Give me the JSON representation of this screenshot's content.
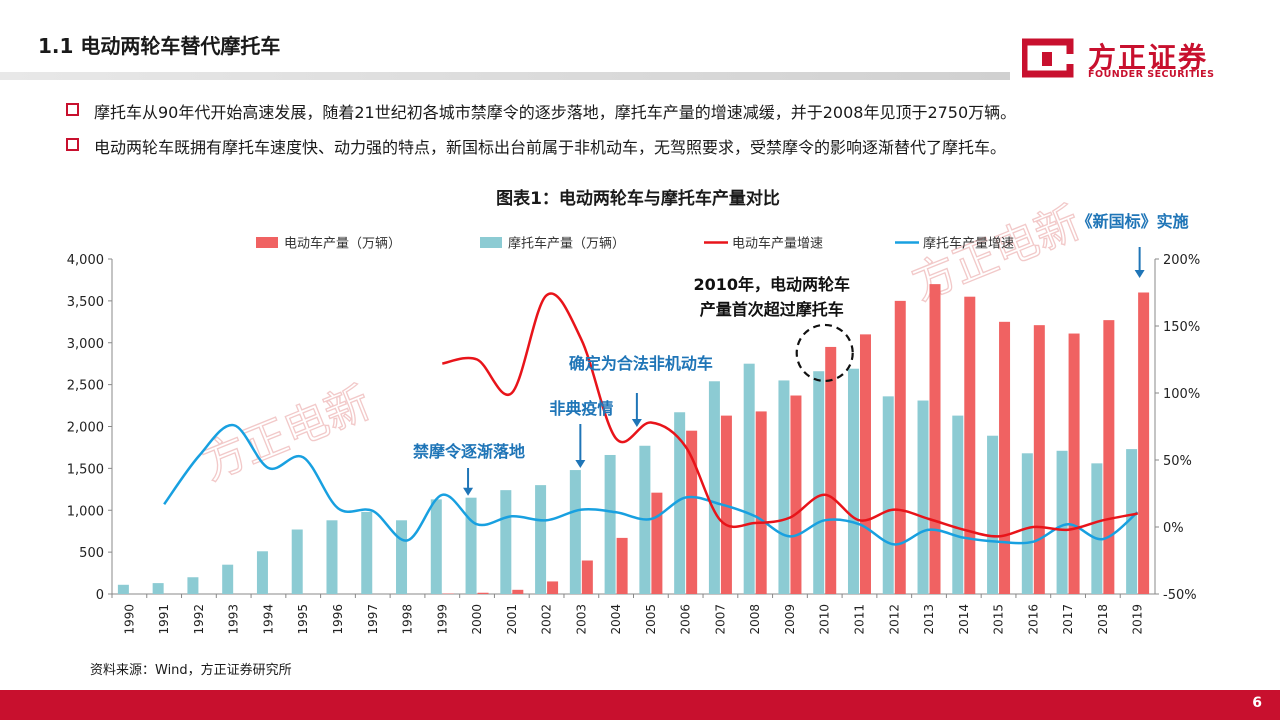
{
  "page": {
    "title": "1.1 电动两轮车替代摩托车",
    "bullets": [
      "摩托车从90年代开始高速发展，随着21世纪初各城市禁摩令的逐步落地，摩托车产量的增速减缓，并于2008年见顶于2750万辆。",
      "电动两轮车既拥有摩托车速度快、动力强的特点，新国标出台前属于非机动车，无驾照要求，受禁摩令的影响逐渐替代了摩托车。"
    ],
    "source": "资料来源：Wind，方正证券研究所",
    "page_number": "6",
    "logo": {
      "cn": "方正证券",
      "en": "FOUNDER SECURITIES"
    },
    "watermark": "方正电新"
  },
  "colors": {
    "accent": "#c8102e",
    "ev_bar": "#f06262",
    "moto_bar": "#8ccbd3",
    "ev_line": "#e8141a",
    "moto_line": "#18a0e0",
    "annotation": "#1f75b7"
  },
  "chart_data": {
    "type": "bar",
    "title": "图表1：电动两轮车与摩托车产量对比",
    "categories": [
      "1990",
      "1991",
      "1992",
      "1993",
      "1994",
      "1995",
      "1996",
      "1997",
      "1998",
      "1999",
      "2000",
      "2001",
      "2002",
      "2003",
      "2004",
      "2005",
      "2006",
      "2007",
      "2008",
      "2009",
      "2010",
      "2011",
      "2012",
      "2013",
      "2014",
      "2015",
      "2016",
      "2017",
      "2018",
      "2019"
    ],
    "series": [
      {
        "name": "电动车产量（万辆）",
        "type": "bar",
        "axis": "left",
        "values": [
          0,
          0,
          0,
          0,
          0,
          0,
          0,
          0,
          0,
          5,
          15,
          50,
          150,
          400,
          670,
          1210,
          1950,
          2130,
          2180,
          2370,
          2950,
          3100,
          3500,
          3700,
          3550,
          3250,
          3210,
          3110,
          3270,
          3600
        ]
      },
      {
        "name": "摩托车产量（万辆）",
        "type": "bar",
        "axis": "left",
        "values": [
          110,
          130,
          200,
          350,
          510,
          770,
          880,
          980,
          880,
          1130,
          1150,
          1240,
          1300,
          1480,
          1660,
          1770,
          2170,
          2540,
          2750,
          2550,
          2660,
          2690,
          2360,
          2310,
          2130,
          1890,
          1680,
          1710,
          1560,
          1730
        ]
      },
      {
        "name": "电动车产量增速",
        "type": "line",
        "axis": "right",
        "values": [
          null,
          null,
          null,
          null,
          null,
          null,
          null,
          null,
          null,
          122,
          125,
          100,
          173,
          140,
          66,
          78,
          60,
          5,
          3,
          7,
          24,
          5,
          13,
          6,
          -2,
          -7,
          0,
          -2,
          5,
          10
        ]
      },
      {
        "name": "摩托车产量增速",
        "type": "line",
        "axis": "right",
        "values": [
          null,
          17,
          53,
          76,
          44,
          52,
          14,
          12,
          -10,
          24,
          2,
          8,
          5,
          13,
          11,
          6,
          22,
          17,
          8,
          -7,
          5,
          2,
          -13,
          -2,
          -8,
          -11,
          -11,
          2,
          -9,
          11
        ]
      }
    ],
    "y_left": {
      "min": 0,
      "max": 4000,
      "step": 500,
      "tick_labels": [
        "0",
        "500",
        "1,000",
        "1,500",
        "2,000",
        "2,500",
        "3,000",
        "3,500",
        "4,000"
      ]
    },
    "y_right": {
      "min": -50,
      "max": 200,
      "step": 50,
      "tick_labels": [
        "-50%",
        "0%",
        "50%",
        "100%",
        "150%",
        "200%"
      ]
    },
    "legend_position": "top",
    "annotations": [
      {
        "text": "禁摩令逐渐落地",
        "year": "2000",
        "value": 1150
      },
      {
        "text": "非典疫情",
        "year": "2003",
        "value": 1480
      },
      {
        "text": "确定为合法非机动车",
        "year": "2005",
        "value": 1770
      },
      {
        "text": "2010年，电动两轮车",
        "year": "2010",
        "value": 2950
      },
      {
        "text": "产量首次超过摩托车",
        "year": "2010",
        "value": 2950
      },
      {
        "text": "《新国标》实施",
        "year": "2019",
        "value": 3600
      }
    ]
  }
}
